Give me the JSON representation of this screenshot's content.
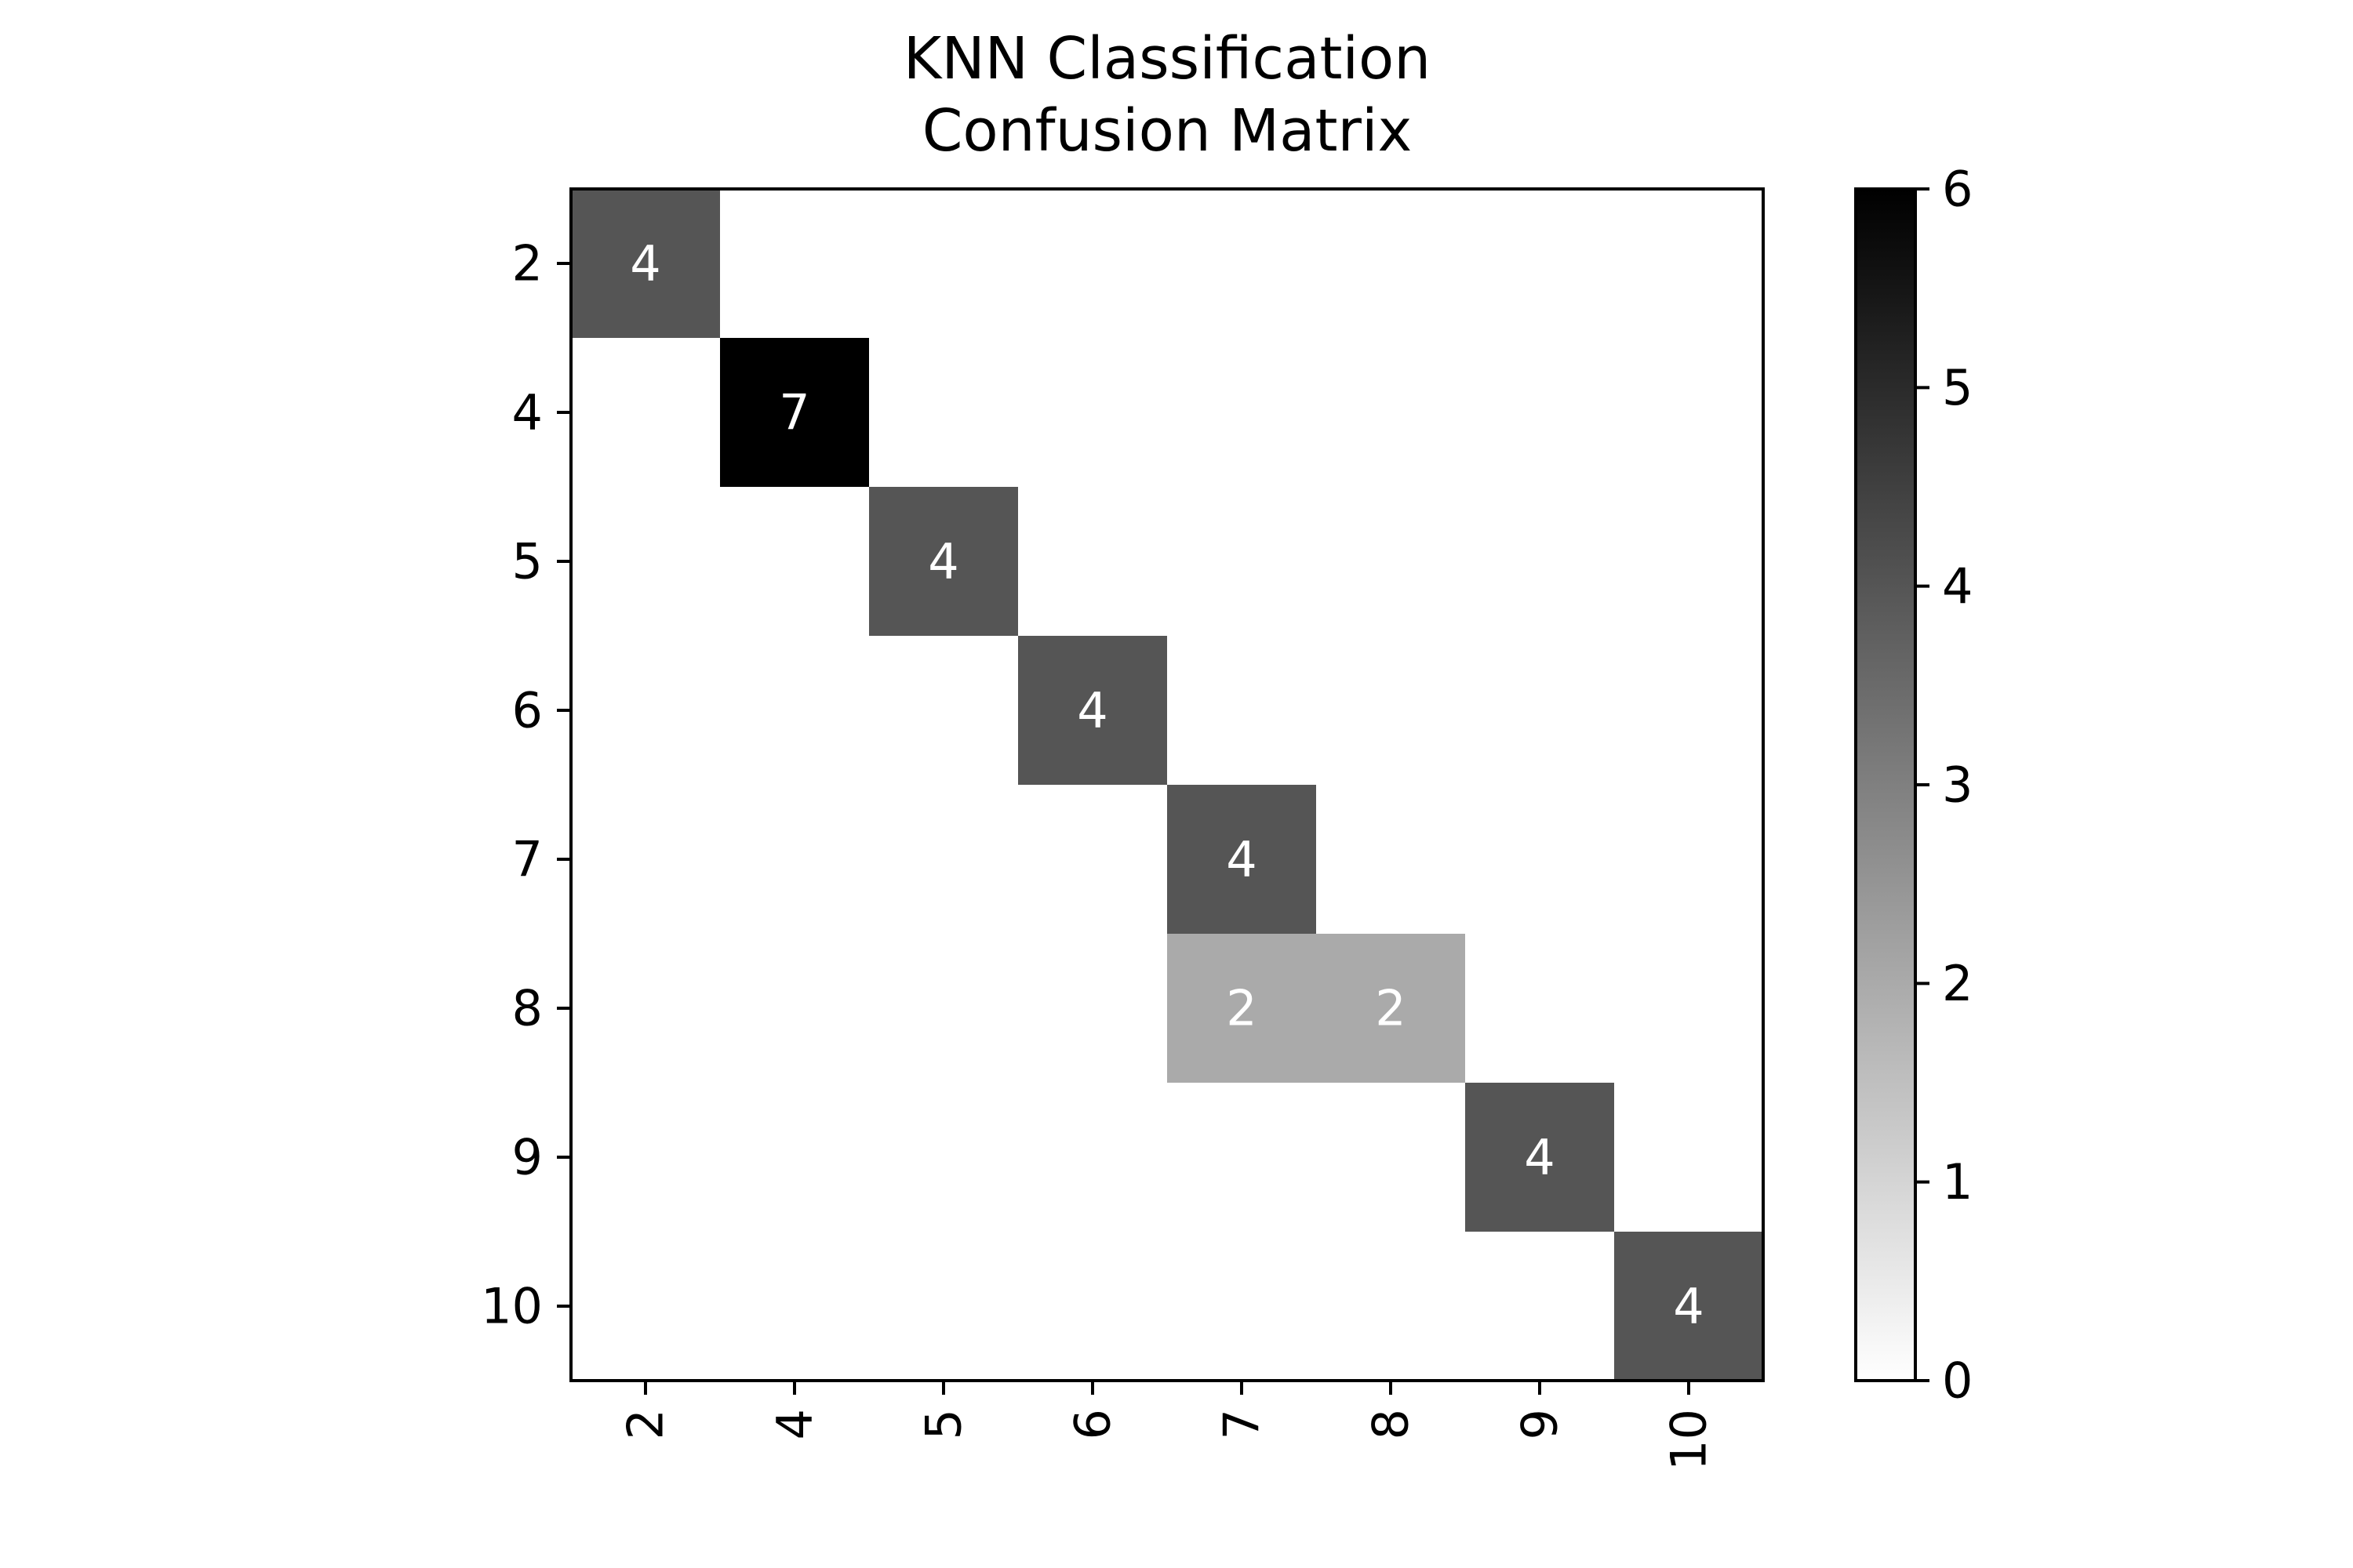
{
  "chart_data": {
    "type": "heatmap",
    "title_lines": [
      "KNN Classification",
      "Confusion Matrix"
    ],
    "x_categories": [
      "2",
      "4",
      "5",
      "6",
      "7",
      "8",
      "9",
      "10"
    ],
    "y_categories": [
      "2",
      "4",
      "5",
      "6",
      "7",
      "8",
      "9",
      "10"
    ],
    "matrix": [
      [
        4,
        0,
        0,
        0,
        0,
        0,
        0,
        0
      ],
      [
        0,
        7,
        0,
        0,
        0,
        0,
        0,
        0
      ],
      [
        0,
        0,
        4,
        0,
        0,
        0,
        0,
        0
      ],
      [
        0,
        0,
        0,
        4,
        0,
        0,
        0,
        0
      ],
      [
        0,
        0,
        0,
        0,
        4,
        0,
        0,
        0
      ],
      [
        0,
        0,
        0,
        0,
        2,
        2,
        0,
        0
      ],
      [
        0,
        0,
        0,
        0,
        0,
        0,
        4,
        0
      ],
      [
        0,
        0,
        0,
        0,
        0,
        0,
        0,
        4
      ]
    ],
    "xlabel": "",
    "ylabel": "",
    "colormap": "Greys",
    "color_range": [
      0,
      6
    ],
    "colorbar_ticks": [
      "0",
      "1",
      "2",
      "3",
      "4",
      "5",
      "6"
    ],
    "annotation_color": "#ffffff",
    "annotate_zero_cells": false,
    "grid": false,
    "x_tick_rotation": "vertical"
  }
}
